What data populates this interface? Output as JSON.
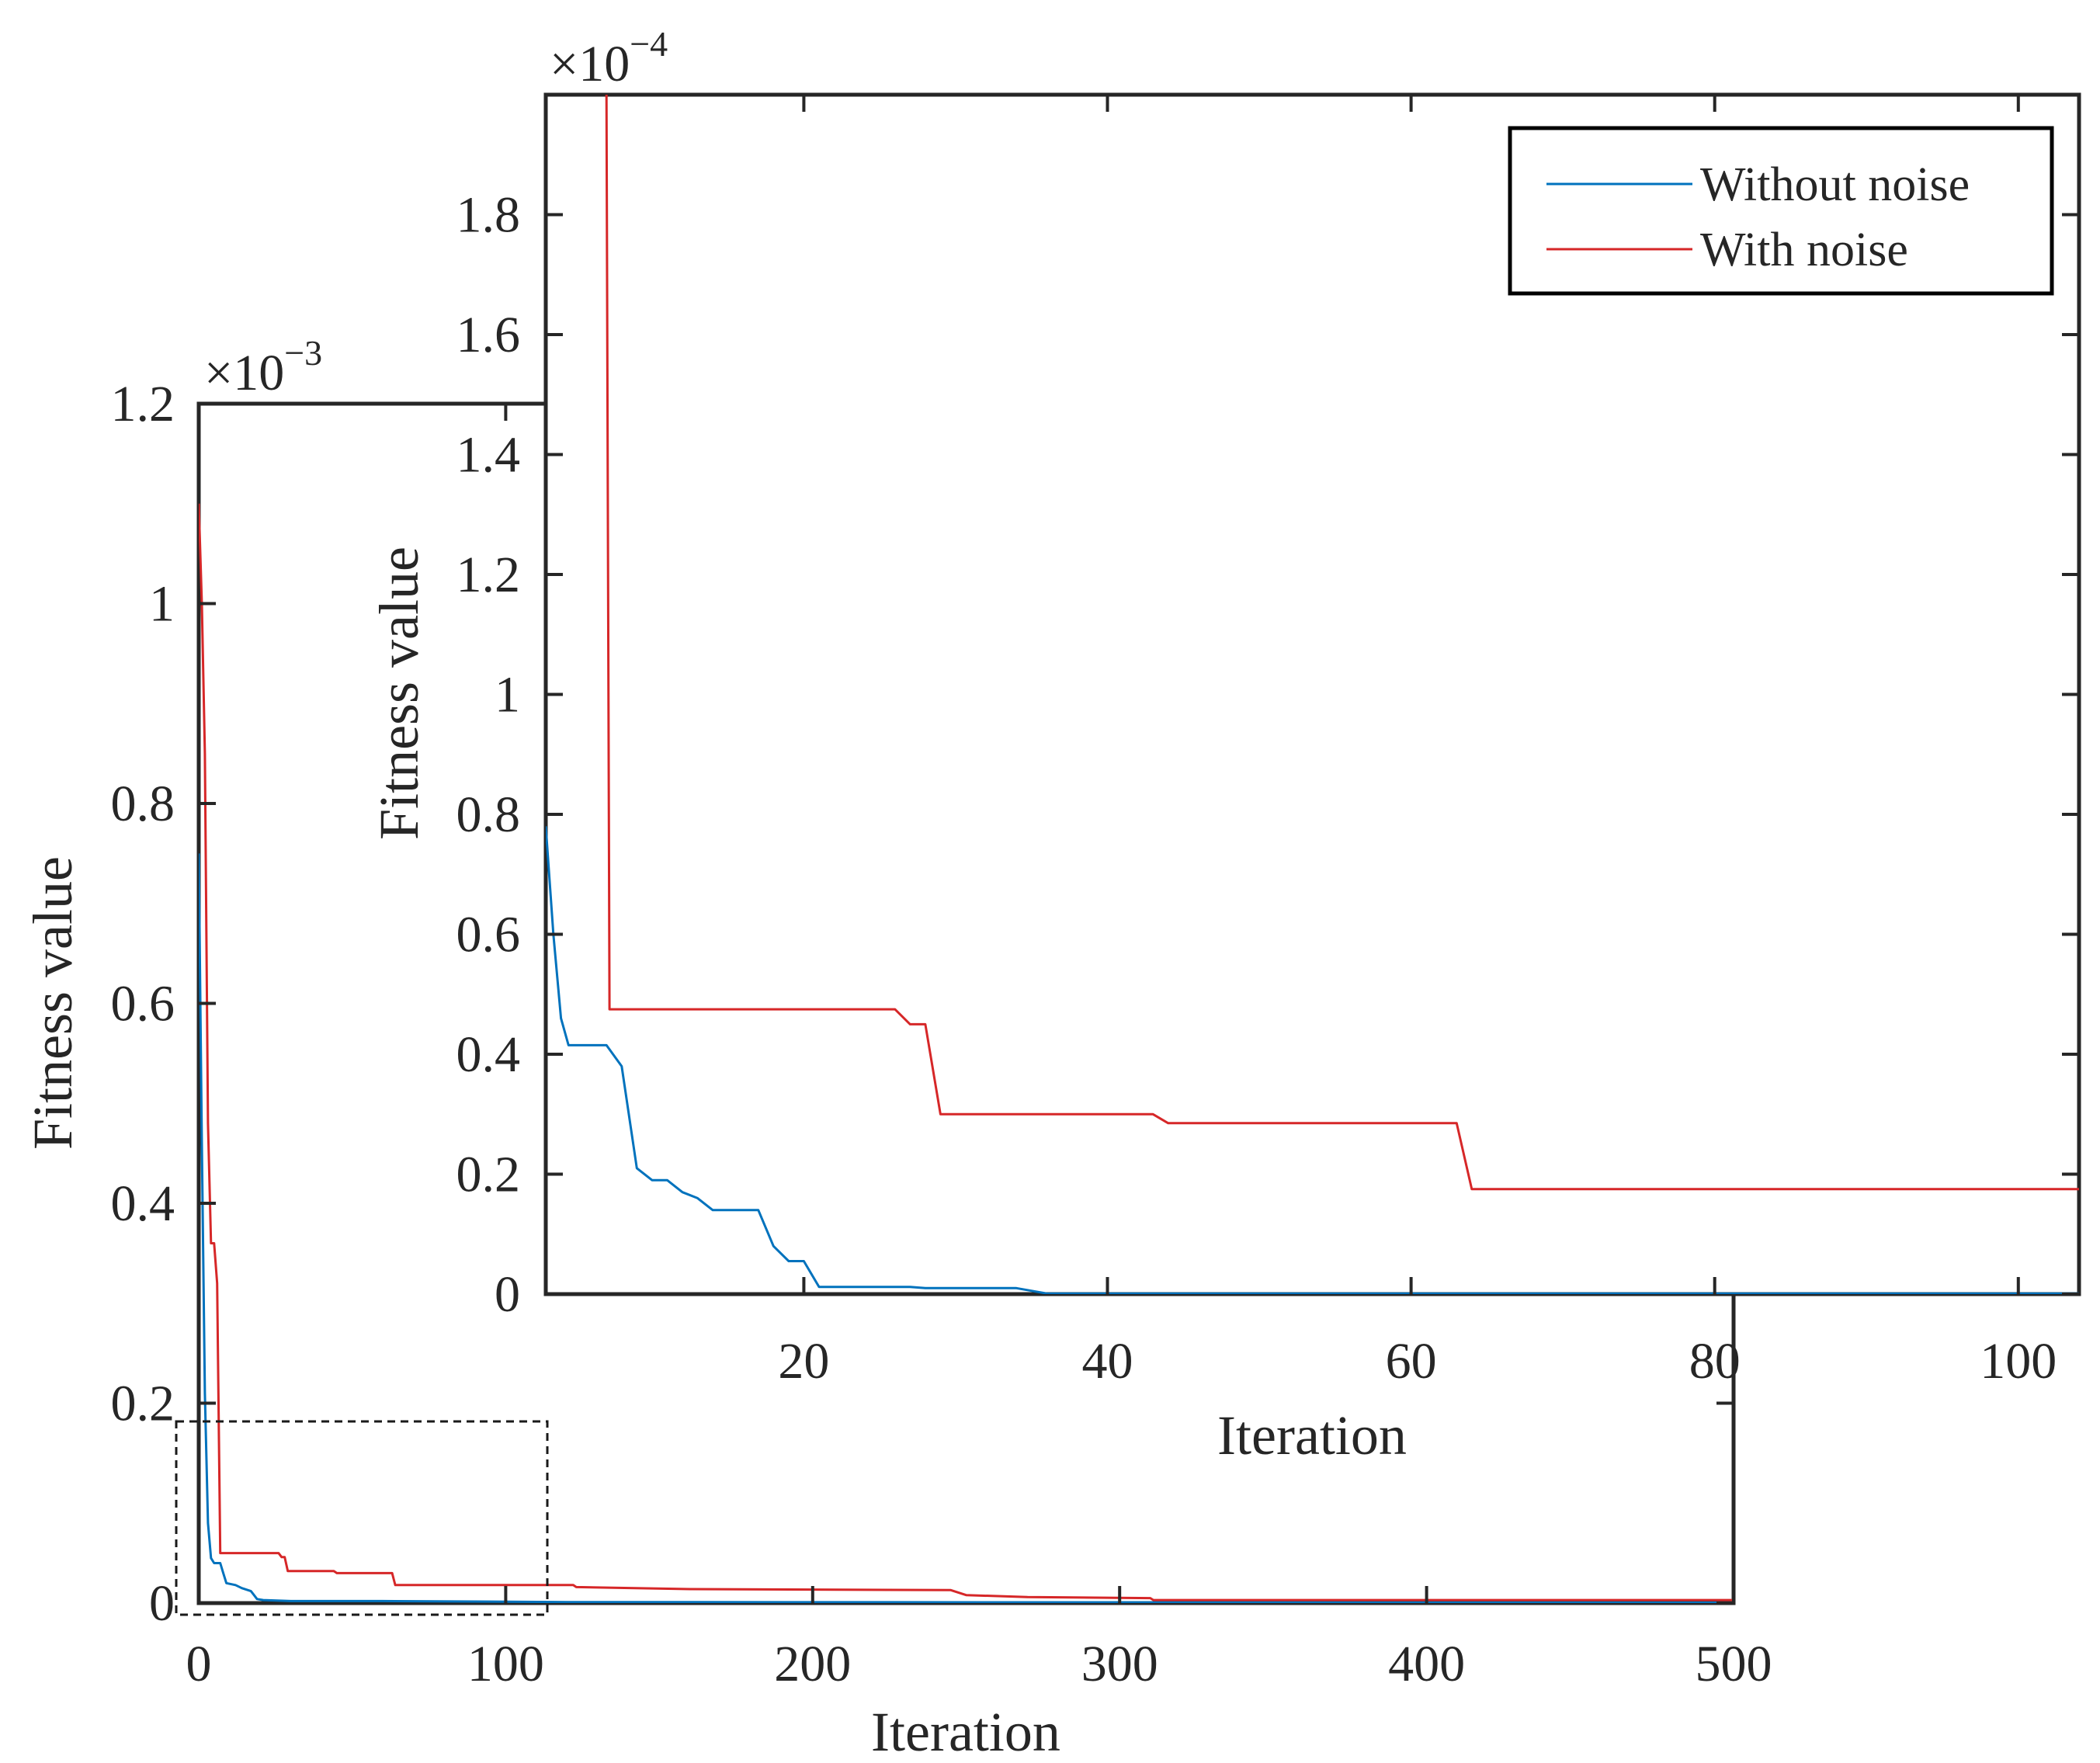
{
  "chart_data": [
    {
      "id": "main",
      "type": "line",
      "xlabel": "Iteration",
      "ylabel": "Fitness value",
      "xlim": [
        0,
        500
      ],
      "ylim": [
        0,
        1.2
      ],
      "y_exponent_base": "×10",
      "y_exponent": "−3",
      "xticks": [
        0,
        100,
        200,
        300,
        400,
        500
      ],
      "xtick_labels": [
        "0",
        "100",
        "200",
        "300",
        "400",
        "500"
      ],
      "yticks": [
        0,
        0.2,
        0.4,
        0.6,
        0.8,
        1,
        1.2
      ],
      "ytick_labels": [
        "0",
        "0.2",
        "0.4",
        "0.6",
        "0.8",
        "1",
        "1.2"
      ],
      "grid": false,
      "series": [
        {
          "name": "Without noise",
          "color": "#0072BD",
          "points": [
            [
              0,
              0.75
            ],
            [
              1,
              0.46
            ],
            [
              2,
              0.21
            ],
            [
              3,
              0.08
            ],
            [
              4,
              0.045
            ],
            [
              5,
              0.04
            ],
            [
              7,
              0.04
            ],
            [
              8,
              0.03
            ],
            [
              9,
              0.02
            ],
            [
              12,
              0.018
            ],
            [
              14,
              0.015
            ],
            [
              17,
              0.012
            ],
            [
              18,
              0.008
            ],
            [
              19,
              0.004
            ],
            [
              21,
              0.003
            ],
            [
              30,
              0.002
            ],
            [
              60,
              0.002
            ],
            [
              120,
              0.001
            ],
            [
              500,
              0.0005
            ]
          ]
        },
        {
          "name": "With noise",
          "color": "#D62728",
          "points": [
            [
              0,
              1.1
            ],
            [
              1,
              1.0
            ],
            [
              2,
              0.85
            ],
            [
              3,
              0.48
            ],
            [
              4,
              0.36
            ],
            [
              5,
              0.36
            ],
            [
              6,
              0.32
            ],
            [
              7,
              0.05
            ],
            [
              26,
              0.05
            ],
            [
              27,
              0.046
            ],
            [
              28,
              0.046
            ],
            [
              29,
              0.032
            ],
            [
              44,
              0.032
            ],
            [
              45,
              0.03
            ],
            [
              63,
              0.03
            ],
            [
              64,
              0.018
            ],
            [
              122,
              0.018
            ],
            [
              123,
              0.016
            ],
            [
              160,
              0.014
            ],
            [
              245,
              0.013
            ],
            [
              250,
              0.008
            ],
            [
              270,
              0.006
            ],
            [
              310,
              0.005
            ],
            [
              311,
              0.003
            ],
            [
              500,
              0.003
            ]
          ]
        }
      ]
    },
    {
      "id": "inset",
      "type": "line",
      "xlabel": "Iteration",
      "ylabel": "Fitness value",
      "xlim": [
        3,
        104
      ],
      "ylim": [
        0,
        2.0
      ],
      "y_exponent_base": "×10",
      "y_exponent": "−4",
      "xticks": [
        20,
        40,
        60,
        80,
        100
      ],
      "xtick_labels": [
        "20",
        "40",
        "60",
        "80",
        "100"
      ],
      "yticks": [
        0,
        0.2,
        0.4,
        0.6,
        0.8,
        1,
        1.2,
        1.4,
        1.6,
        1.8
      ],
      "ytick_labels": [
        "0",
        "0.2",
        "0.4",
        "0.6",
        "0.8",
        "1",
        "1.2",
        "1.4",
        "1.6",
        "1.8"
      ],
      "grid": false,
      "legend": {
        "position": "top-right",
        "entries": [
          "Without noise",
          "With noise"
        ]
      },
      "series": [
        {
          "name": "Without noise",
          "color": "#0072BD",
          "points": [
            [
              3,
              0.78
            ],
            [
              3.5,
              0.6
            ],
            [
              4,
              0.46
            ],
            [
              4.5,
              0.415
            ],
            [
              7,
              0.415
            ],
            [
              8,
              0.38
            ],
            [
              9,
              0.21
            ],
            [
              10,
              0.19
            ],
            [
              11,
              0.19
            ],
            [
              12,
              0.17
            ],
            [
              13,
              0.16
            ],
            [
              14,
              0.14
            ],
            [
              17,
              0.14
            ],
            [
              18,
              0.08
            ],
            [
              19,
              0.055
            ],
            [
              20,
              0.055
            ],
            [
              21,
              0.012
            ],
            [
              27,
              0.012
            ],
            [
              28,
              0.01
            ],
            [
              34,
              0.01
            ],
            [
              36,
              0.001
            ],
            [
              104,
              0.001
            ]
          ]
        },
        {
          "name": "With noise",
          "color": "#D62728",
          "points": [
            [
              6.8,
              2.05
            ],
            [
              7,
              2.0
            ],
            [
              7.2,
              0.475
            ],
            [
              26,
              0.475
            ],
            [
              27,
              0.45
            ],
            [
              28,
              0.45
            ],
            [
              29,
              0.3
            ],
            [
              43,
              0.3
            ],
            [
              44,
              0.285
            ],
            [
              63,
              0.285
            ],
            [
              64,
              0.175
            ],
            [
              104,
              0.175
            ]
          ]
        }
      ]
    }
  ]
}
